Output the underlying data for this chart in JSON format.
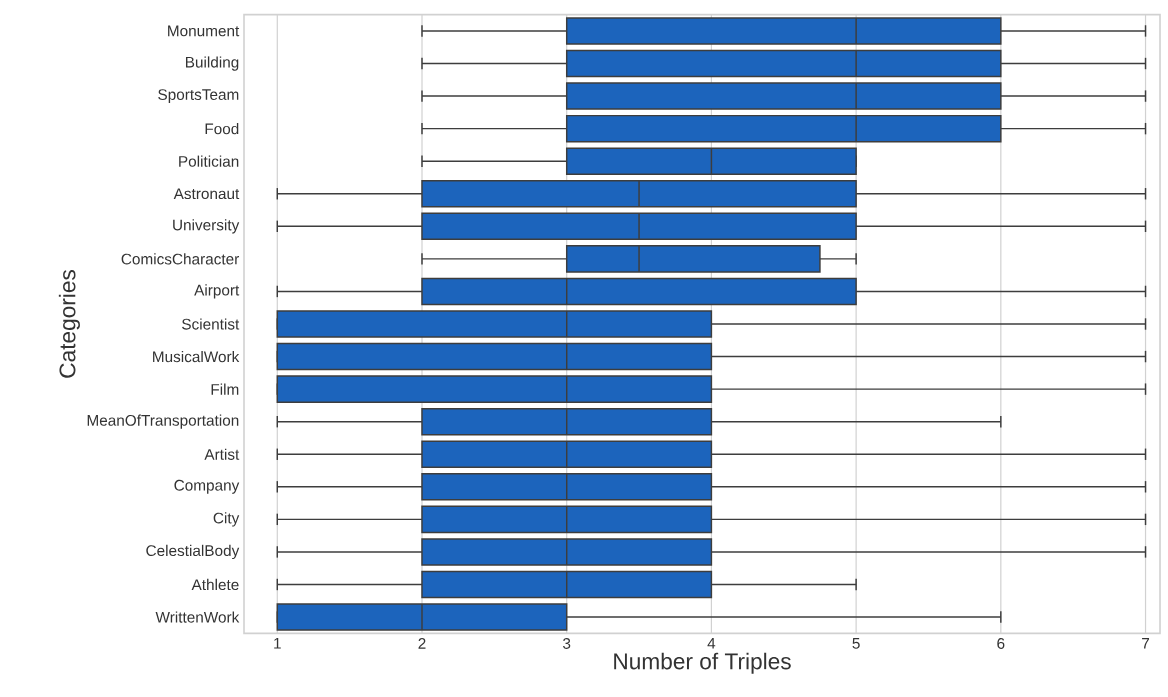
{
  "chart_data": {
    "type": "box",
    "orientation": "horizontal",
    "xlabel": "Number of Triples",
    "ylabel": "Categories",
    "categories": [
      "Monument",
      "Building",
      "SportsTeam",
      "Food",
      "Politician",
      "Astronaut",
      "University",
      "ComicsCharacter",
      "Airport",
      "Scientist",
      "MusicalWork",
      "Film",
      "MeanOfTransportation",
      "Artist",
      "Company",
      "City",
      "CelestialBody",
      "Athlete",
      "WrittenWork"
    ],
    "boxes": [
      {
        "low": 2,
        "q1": 3,
        "median": 5,
        "q3": 6,
        "high": 7
      },
      {
        "low": 2,
        "q1": 3,
        "median": 5,
        "q3": 6,
        "high": 7
      },
      {
        "low": 2,
        "q1": 3,
        "median": 5,
        "q3": 6,
        "high": 7
      },
      {
        "low": 2,
        "q1": 3,
        "median": 5,
        "q3": 6,
        "high": 7
      },
      {
        "low": 2,
        "q1": 3,
        "median": 4,
        "q3": 5,
        "high": 5
      },
      {
        "low": 1,
        "q1": 2,
        "median": 3.5,
        "q3": 5,
        "high": 7
      },
      {
        "low": 1,
        "q1": 2,
        "median": 3.5,
        "q3": 5,
        "high": 7
      },
      {
        "low": 2,
        "q1": 3,
        "median": 3.5,
        "q3": 4.75,
        "high": 5
      },
      {
        "low": 1,
        "q1": 2,
        "median": 3,
        "q3": 5,
        "high": 7
      },
      {
        "low": 1,
        "q1": 1,
        "median": 3,
        "q3": 4,
        "high": 7
      },
      {
        "low": 1,
        "q1": 1,
        "median": 3,
        "q3": 4,
        "high": 7
      },
      {
        "low": 1,
        "q1": 1,
        "median": 3,
        "q3": 4,
        "high": 7
      },
      {
        "low": 1,
        "q1": 2,
        "median": 3,
        "q3": 4,
        "high": 6
      },
      {
        "low": 1,
        "q1": 2,
        "median": 3,
        "q3": 4,
        "high": 7
      },
      {
        "low": 1,
        "q1": 2,
        "median": 3,
        "q3": 4,
        "high": 7
      },
      {
        "low": 1,
        "q1": 2,
        "median": 3,
        "q3": 4,
        "high": 7
      },
      {
        "low": 1,
        "q1": 2,
        "median": 3,
        "q3": 4,
        "high": 7
      },
      {
        "low": 1,
        "q1": 2,
        "median": 3,
        "q3": 4,
        "high": 5
      },
      {
        "low": 1,
        "q1": 1,
        "median": 2,
        "q3": 3,
        "high": 6
      }
    ],
    "color": "#1c64bc",
    "xlim": [
      0.77,
      7.1
    ],
    "xticks": [
      1,
      2,
      3,
      4,
      5,
      6,
      7
    ],
    "grid": "x"
  }
}
